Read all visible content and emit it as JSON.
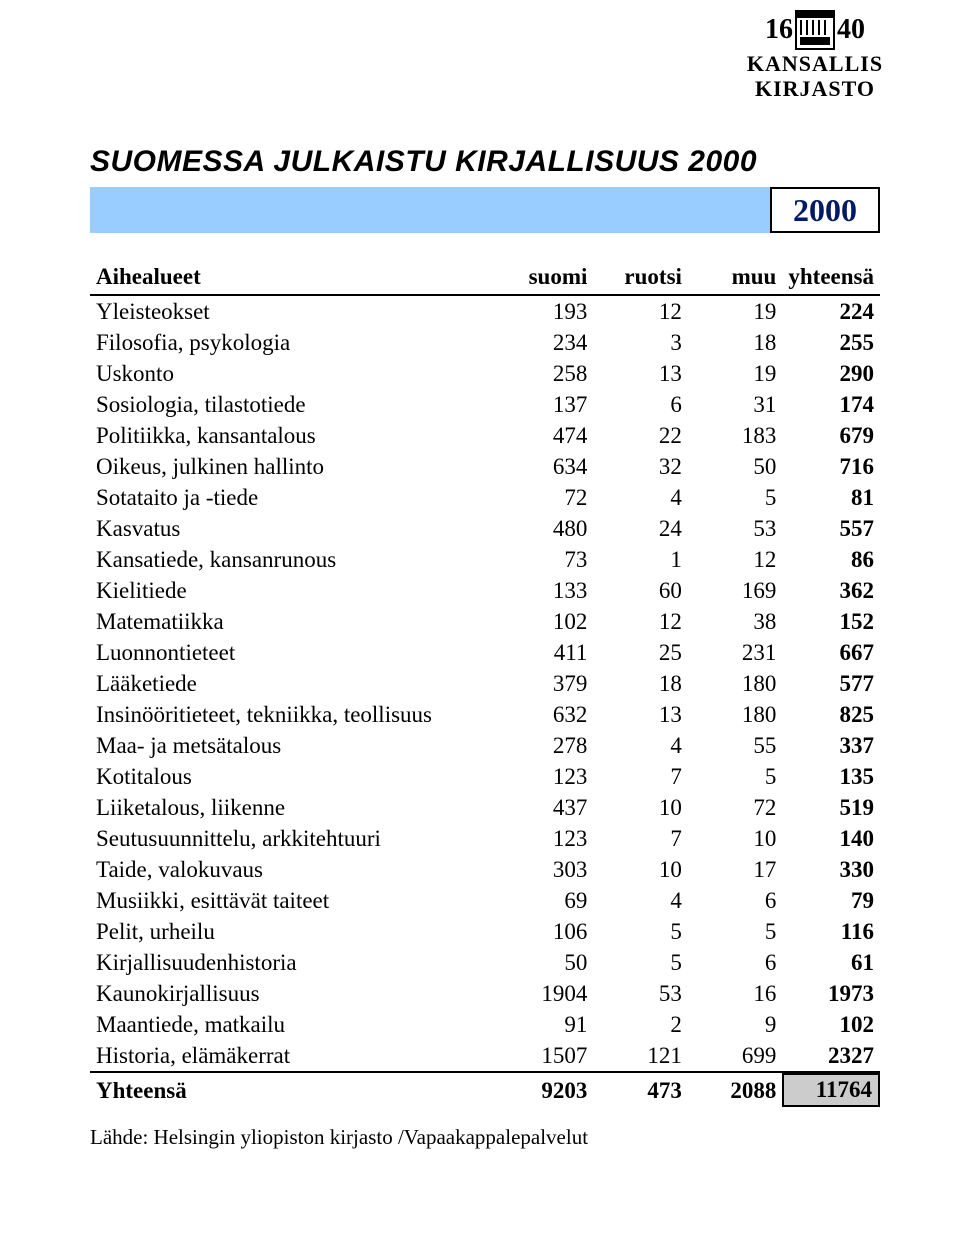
{
  "logo": {
    "year_left": "16",
    "year_right": "40",
    "line1": "KANSALLIS",
    "line2": "KIRJASTO"
  },
  "title": "SUOMESSA JULKAISTU KIRJALLISUUS 2000",
  "year_box": "2000",
  "colors": {
    "bar_fill": "#99ccff",
    "year_text": "#001a66",
    "grandtotal_fill": "#cccccc",
    "border": "#000000",
    "background": "#ffffff"
  },
  "columns": {
    "category": "Aihealueet",
    "c1": "suomi",
    "c2": "ruotsi",
    "c3": "muu",
    "c4": "yhteensä"
  },
  "rows": [
    {
      "label": "Yleisteokset",
      "v": [
        "193",
        "12",
        "19",
        "224"
      ]
    },
    {
      "label": "Filosofia, psykologia",
      "v": [
        "234",
        "3",
        "18",
        "255"
      ]
    },
    {
      "label": "Uskonto",
      "v": [
        "258",
        "13",
        "19",
        "290"
      ]
    },
    {
      "label": "Sosiologia, tilastotiede",
      "v": [
        "137",
        "6",
        "31",
        "174"
      ]
    },
    {
      "label": "Politiikka, kansantalous",
      "v": [
        "474",
        "22",
        "183",
        "679"
      ]
    },
    {
      "label": "Oikeus, julkinen hallinto",
      "v": [
        "634",
        "32",
        "50",
        "716"
      ]
    },
    {
      "label": "Sotataito ja -tiede",
      "v": [
        "72",
        "4",
        "5",
        "81"
      ]
    },
    {
      "label": "Kasvatus",
      "v": [
        "480",
        "24",
        "53",
        "557"
      ]
    },
    {
      "label": "Kansatiede, kansanrunous",
      "v": [
        "73",
        "1",
        "12",
        "86"
      ]
    },
    {
      "label": "Kielitiede",
      "v": [
        "133",
        "60",
        "169",
        "362"
      ]
    },
    {
      "label": "Matematiikka",
      "v": [
        "102",
        "12",
        "38",
        "152"
      ]
    },
    {
      "label": "Luonnontieteet",
      "v": [
        "411",
        "25",
        "231",
        "667"
      ]
    },
    {
      "label": "Lääketiede",
      "v": [
        "379",
        "18",
        "180",
        "577"
      ]
    },
    {
      "label": "Insinööritieteet, tekniikka, teollisuus",
      "v": [
        "632",
        "13",
        "180",
        "825"
      ]
    },
    {
      "label": "Maa- ja metsätalous",
      "v": [
        "278",
        "4",
        "55",
        "337"
      ]
    },
    {
      "label": "Kotitalous",
      "v": [
        "123",
        "7",
        "5",
        "135"
      ]
    },
    {
      "label": "Liiketalous, liikenne",
      "v": [
        "437",
        "10",
        "72",
        "519"
      ]
    },
    {
      "label": "Seutusuunnittelu, arkkitehtuuri",
      "v": [
        "123",
        "7",
        "10",
        "140"
      ]
    },
    {
      "label": "Taide, valokuvaus",
      "v": [
        "303",
        "10",
        "17",
        "330"
      ]
    },
    {
      "label": "Musiikki, esittävät taiteet",
      "v": [
        "69",
        "4",
        "6",
        "79"
      ]
    },
    {
      "label": "Pelit, urheilu",
      "v": [
        "106",
        "5",
        "5",
        "116"
      ]
    },
    {
      "label": "Kirjallisuudenhistoria",
      "v": [
        "50",
        "5",
        "6",
        "61"
      ]
    },
    {
      "label": "Kaunokirjallisuus",
      "v": [
        "1904",
        "53",
        "16",
        "1973"
      ]
    },
    {
      "label": "Maantiede, matkailu",
      "v": [
        "91",
        "2",
        "9",
        "102"
      ]
    },
    {
      "label": "Historia, elämäkerrat",
      "v": [
        "1507",
        "121",
        "699",
        "2327"
      ]
    }
  ],
  "total": {
    "label": "Yhteensä",
    "v": [
      "9203",
      "473",
      "2088",
      "11764"
    ]
  },
  "source": "Lähde: Helsingin yliopiston kirjasto /Vapaakappalepalvelut"
}
